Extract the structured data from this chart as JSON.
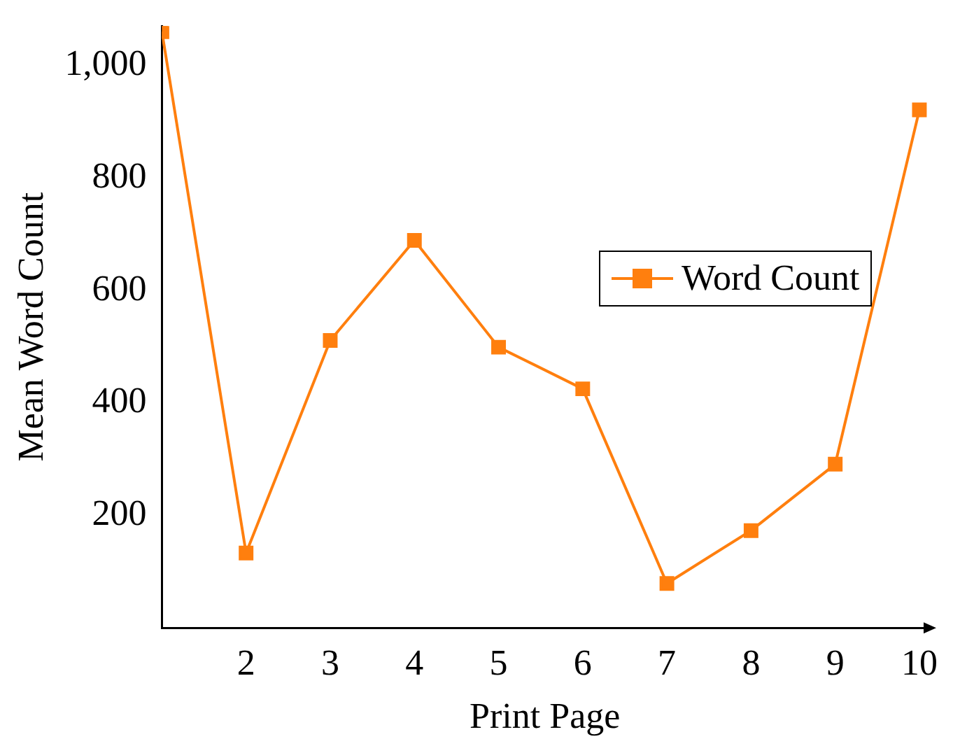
{
  "chart_data": {
    "type": "line",
    "xlabel": "Print Page",
    "ylabel": "Mean Word Count",
    "x": [
      1,
      2,
      3,
      4,
      5,
      6,
      7,
      8,
      9,
      10
    ],
    "series": [
      {
        "name": "Word Count",
        "color": "#ff7f0e",
        "values": [
          1060,
          133,
          511,
          689,
          499,
          425,
          79,
          173,
          291,
          921
        ]
      }
    ],
    "xlim": [
      1,
      10.1
    ],
    "xticks": [
      2,
      3,
      4,
      5,
      6,
      7,
      8,
      9,
      10
    ],
    "ylim": [
      0,
      1070
    ],
    "yticks": [
      200,
      400,
      600,
      800,
      {
        "value": 1000,
        "label": "1,000"
      }
    ],
    "grid": false,
    "legend": "right",
    "marker": "square",
    "line_style": "solid"
  }
}
